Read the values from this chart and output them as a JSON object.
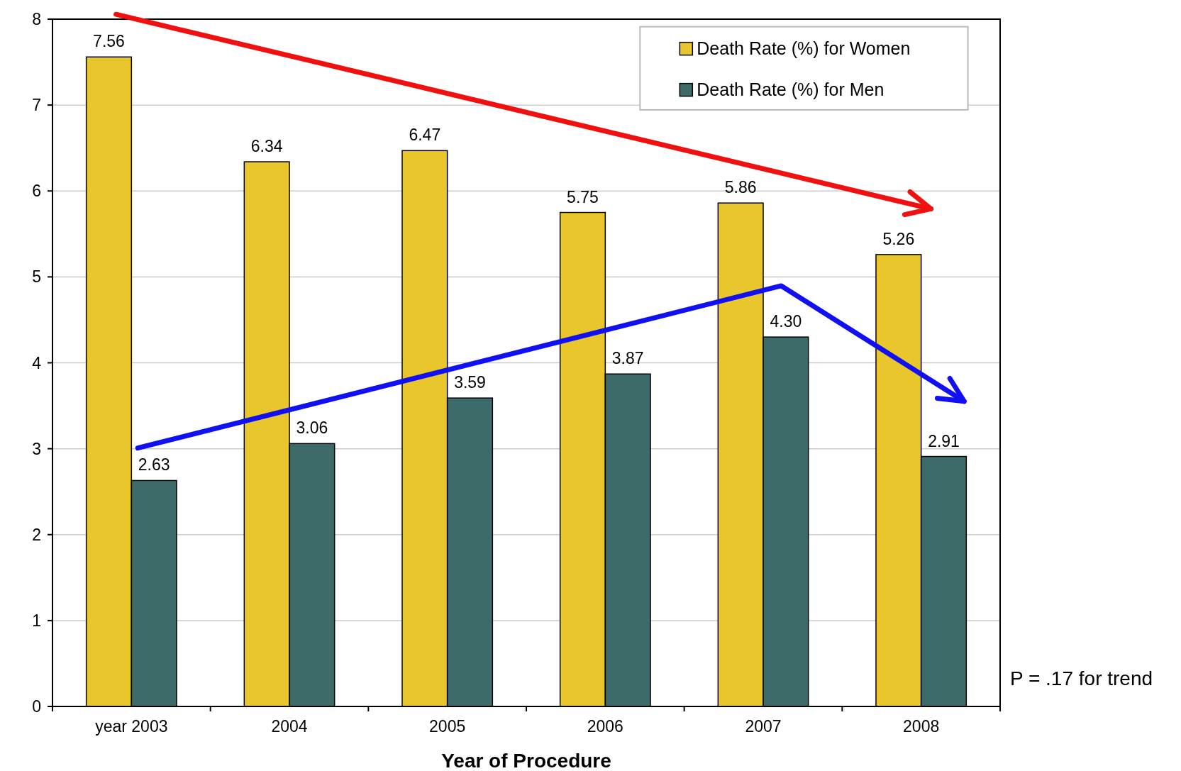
{
  "chart_data": {
    "type": "bar",
    "xlabel": "Year of Procedure",
    "categories": [
      "year 2003",
      "2004",
      "2005",
      "2006",
      "2007",
      "2008"
    ],
    "series": [
      {
        "name": "Death Rate (%) for Women",
        "color": "#e8c62c",
        "values": [
          7.56,
          6.34,
          6.47,
          5.75,
          5.86,
          5.26
        ],
        "value_labels": [
          "7.56",
          "6.34",
          "6.47",
          "5.75",
          "5.86",
          "5.26"
        ]
      },
      {
        "name": "Death Rate (%) for Men",
        "color": "#3d6b6a",
        "values": [
          2.63,
          3.06,
          3.59,
          3.87,
          4.3,
          2.91
        ],
        "value_labels": [
          "2.63",
          "3.06",
          "3.59",
          "3.87",
          "4.30",
          "2.91"
        ]
      }
    ],
    "ylim": [
      0,
      8
    ],
    "yticks": [
      0,
      1,
      2,
      3,
      4,
      5,
      6,
      7,
      8
    ],
    "grid": "y",
    "legend": "top right",
    "annotations": [
      "P = .17 for trend"
    ]
  }
}
